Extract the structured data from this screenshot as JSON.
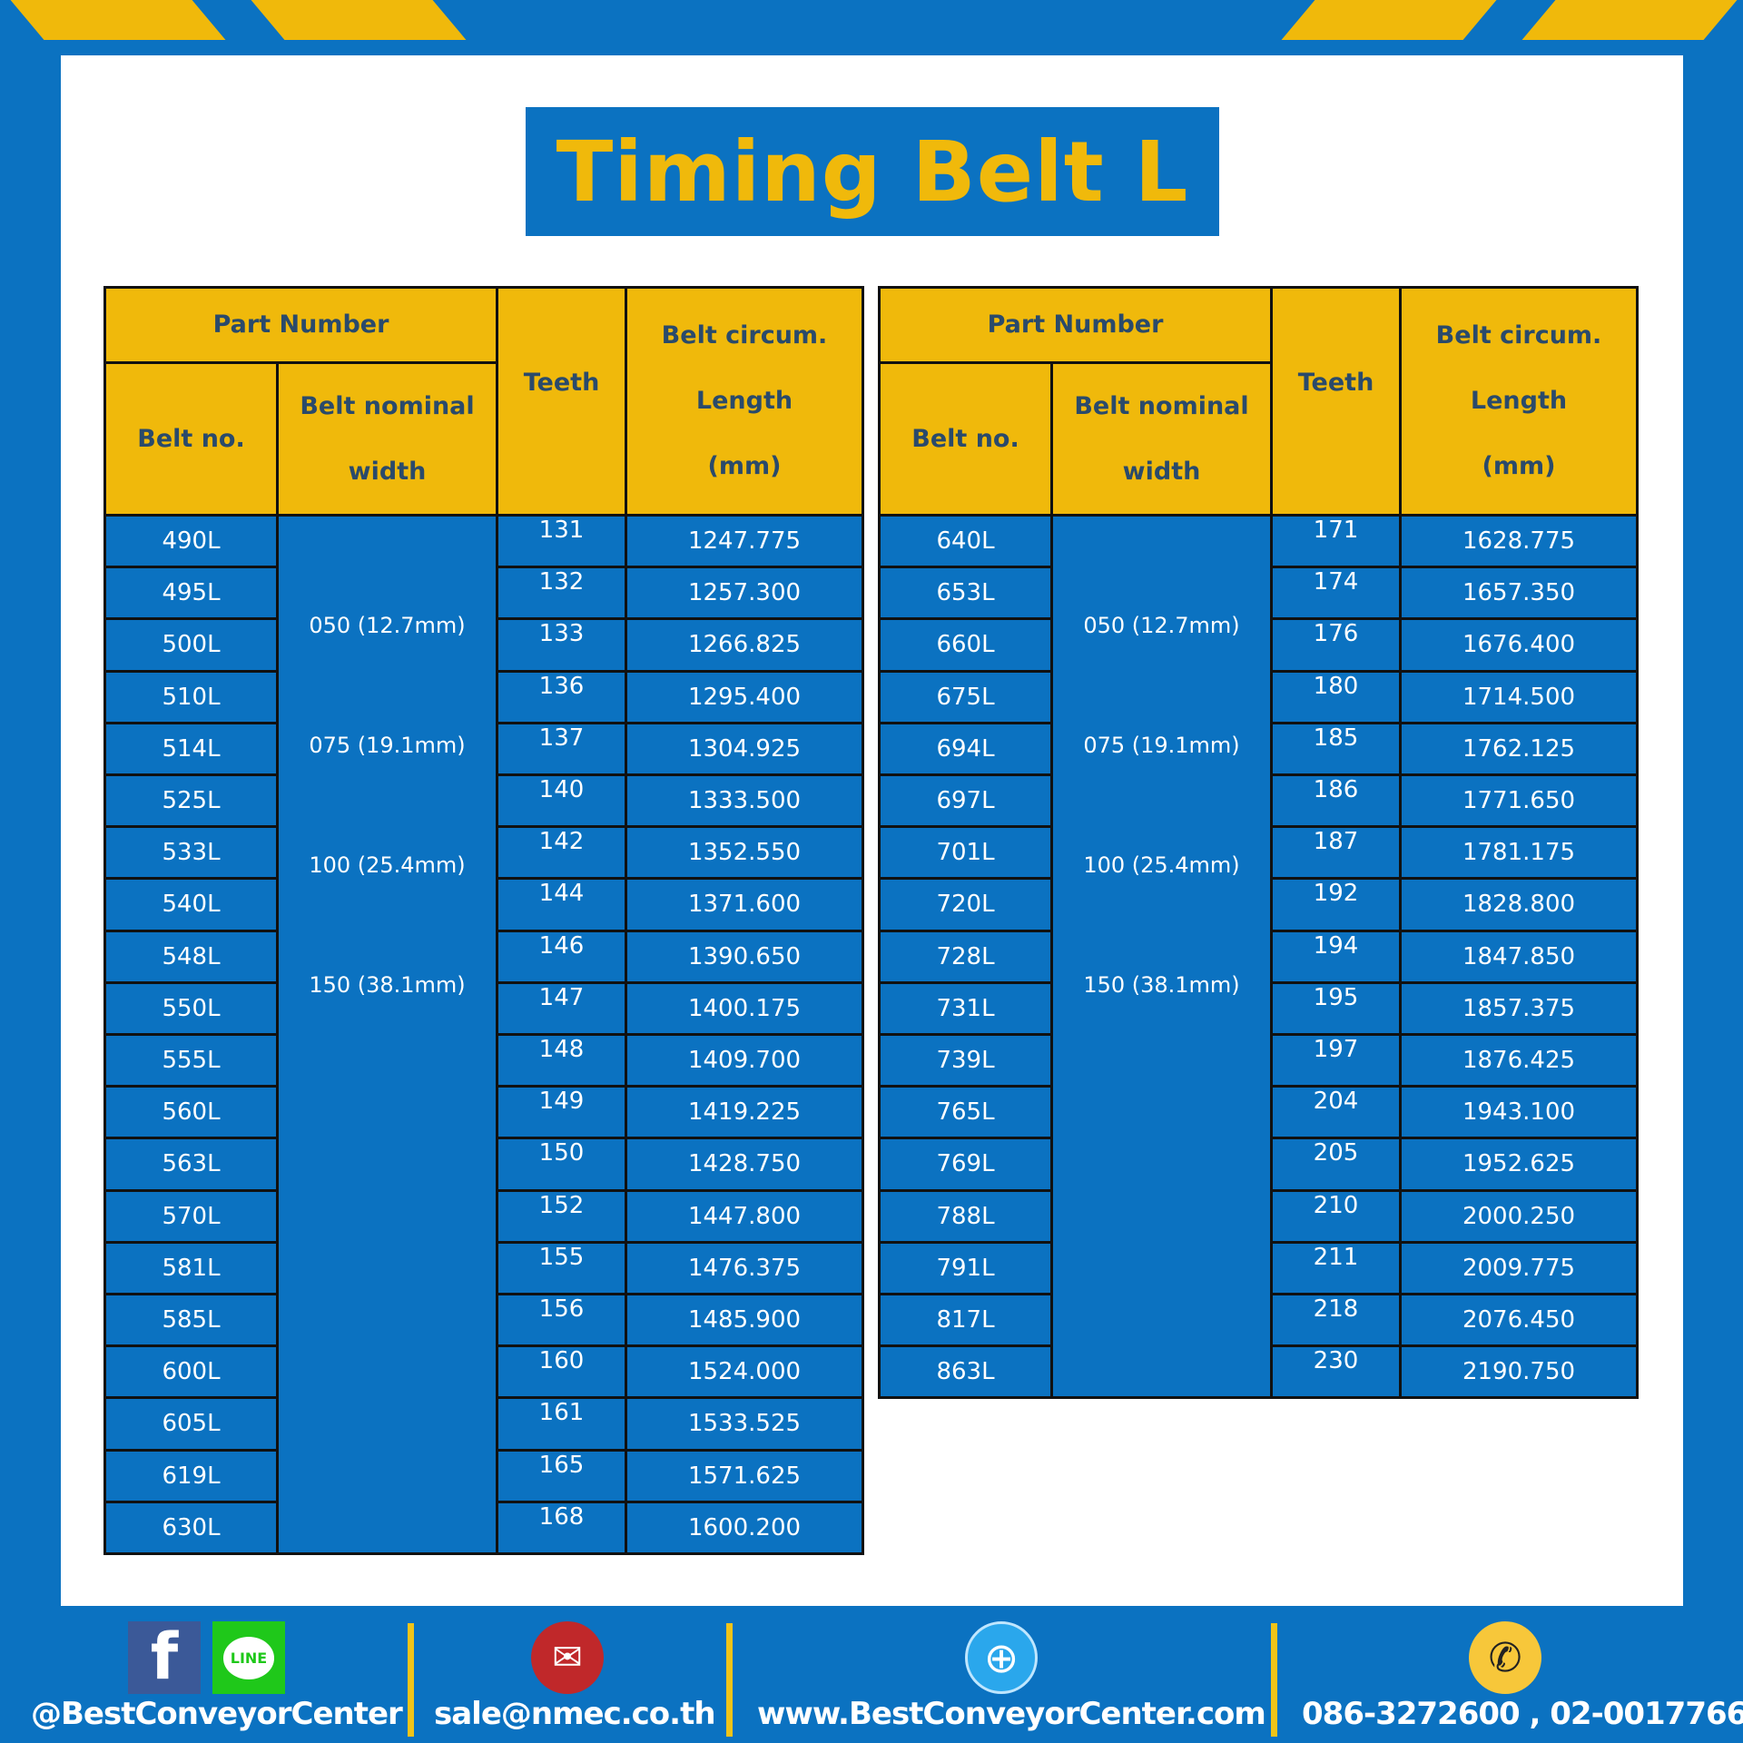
{
  "title": "Timing Belt L",
  "colors": {
    "blue": "#0b72c1",
    "yellow": "#f0b90b",
    "header_text": "#2a4a6b"
  },
  "headers": {
    "part_number": "Part Number",
    "belt_no": "Belt no.",
    "width_l1": "Belt nominal",
    "width_l2": "width",
    "teeth": "Teeth",
    "len_l1": "Belt circum.",
    "len_l2": "Length",
    "len_l3": "(mm)"
  },
  "widths": [
    "050 (12.7mm)",
    "075 (19.1mm)",
    "100 (25.4mm)",
    "150 (38.1mm)"
  ],
  "tables": [
    {
      "rows": [
        [
          "490L",
          "131",
          "1247.775"
        ],
        [
          "495L",
          "132",
          "1257.300"
        ],
        [
          "500L",
          "133",
          "1266.825"
        ],
        [
          "510L",
          "136",
          "1295.400"
        ],
        [
          "514L",
          "137",
          "1304.925"
        ],
        [
          "525L",
          "140",
          "1333.500"
        ],
        [
          "533L",
          "142",
          "1352.550"
        ],
        [
          "540L",
          "144",
          "1371.600"
        ],
        [
          "548L",
          "146",
          "1390.650"
        ],
        [
          "550L",
          "147",
          "1400.175"
        ],
        [
          "555L",
          "148",
          "1409.700"
        ],
        [
          "560L",
          "149",
          "1419.225"
        ],
        [
          "563L",
          "150",
          "1428.750"
        ],
        [
          "570L",
          "152",
          "1447.800"
        ],
        [
          "581L",
          "155",
          "1476.375"
        ],
        [
          "585L",
          "156",
          "1485.900"
        ],
        [
          "600L",
          "160",
          "1524.000"
        ],
        [
          "605L",
          "161",
          "1533.525"
        ],
        [
          "619L",
          "165",
          "1571.625"
        ],
        [
          "630L",
          "168",
          "1600.200"
        ]
      ]
    },
    {
      "rows": [
        [
          "640L",
          "171",
          "1628.775"
        ],
        [
          "653L",
          "174",
          "1657.350"
        ],
        [
          "660L",
          "176",
          "1676.400"
        ],
        [
          "675L",
          "180",
          "1714.500"
        ],
        [
          "694L",
          "185",
          "1762.125"
        ],
        [
          "697L",
          "186",
          "1771.650"
        ],
        [
          "701L",
          "187",
          "1781.175"
        ],
        [
          "720L",
          "192",
          "1828.800"
        ],
        [
          "728L",
          "194",
          "1847.850"
        ],
        [
          "731L",
          "195",
          "1857.375"
        ],
        [
          "739L",
          "197",
          "1876.425"
        ],
        [
          "765L",
          "204",
          "1943.100"
        ],
        [
          "769L",
          "205",
          "1952.625"
        ],
        [
          "788L",
          "210",
          "2000.250"
        ],
        [
          "791L",
          "211",
          "2009.775"
        ],
        [
          "817L",
          "218",
          "2076.450"
        ],
        [
          "863L",
          "230",
          "2190.750"
        ]
      ]
    }
  ],
  "footer": {
    "social": "@BestConveyorCenter",
    "email": "sale@nmec.co.th",
    "website": "www.BestConveyorCenter.com",
    "phone": "086-3272600 , 02-0017766",
    "icons": [
      "facebook-icon",
      "line-icon",
      "email-icon",
      "globe-icon",
      "phone-icon"
    ],
    "line_label": "LINE"
  }
}
